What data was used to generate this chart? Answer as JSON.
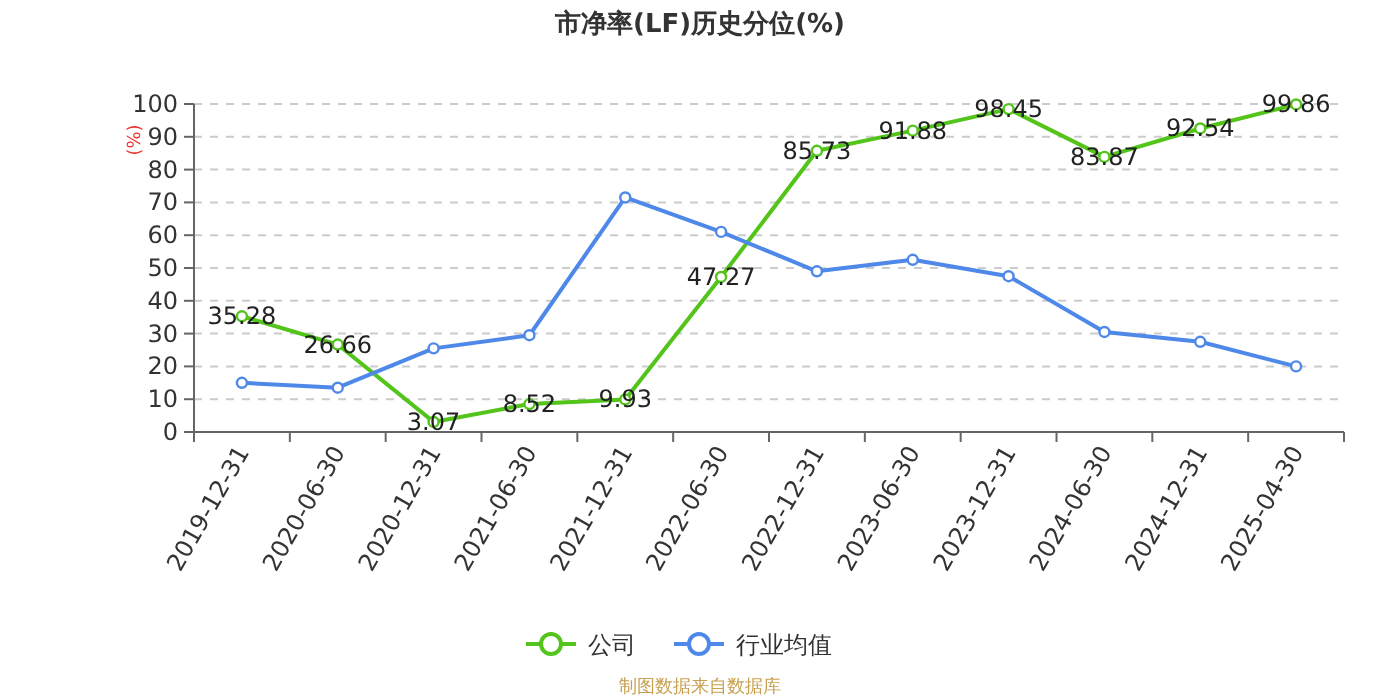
{
  "chart_data": {
    "type": "line",
    "title": "市净率(LF)历史分位(%)",
    "ylabel": "(%)",
    "categories": [
      "2019-12-31",
      "2020-06-30",
      "2020-12-31",
      "2021-06-30",
      "2021-12-31",
      "2022-06-30",
      "2022-12-31",
      "2023-06-30",
      "2023-12-31",
      "2024-06-30",
      "2024-12-31",
      "2025-04-30"
    ],
    "series": [
      {
        "name": "公司",
        "color": "#52c41a",
        "values": [
          35.28,
          26.66,
          3.07,
          8.52,
          9.93,
          47.27,
          85.73,
          91.88,
          98.45,
          83.87,
          92.54,
          99.86
        ],
        "value_labels": [
          "35.28",
          "26.66",
          "3.07",
          "8.52",
          "9.93",
          "47.27",
          "85.73",
          "91.88",
          "98.45",
          "83.87",
          "92.54",
          "99.86"
        ]
      },
      {
        "name": "行业均值",
        "color": "#4e88e8",
        "values": [
          15,
          13.5,
          25.5,
          29.5,
          71.5,
          61,
          49,
          52.5,
          47.5,
          30.5,
          27.5,
          20
        ]
      }
    ],
    "ylim": [
      0,
      100
    ],
    "yticks": [
      0,
      10,
      20,
      30,
      40,
      50,
      60,
      70,
      80,
      90,
      100
    ],
    "grid": "y",
    "legend": "bottom",
    "marker": "circle",
    "line_style": "solid",
    "annotations": [
      "制图数据来自数据库"
    ]
  }
}
